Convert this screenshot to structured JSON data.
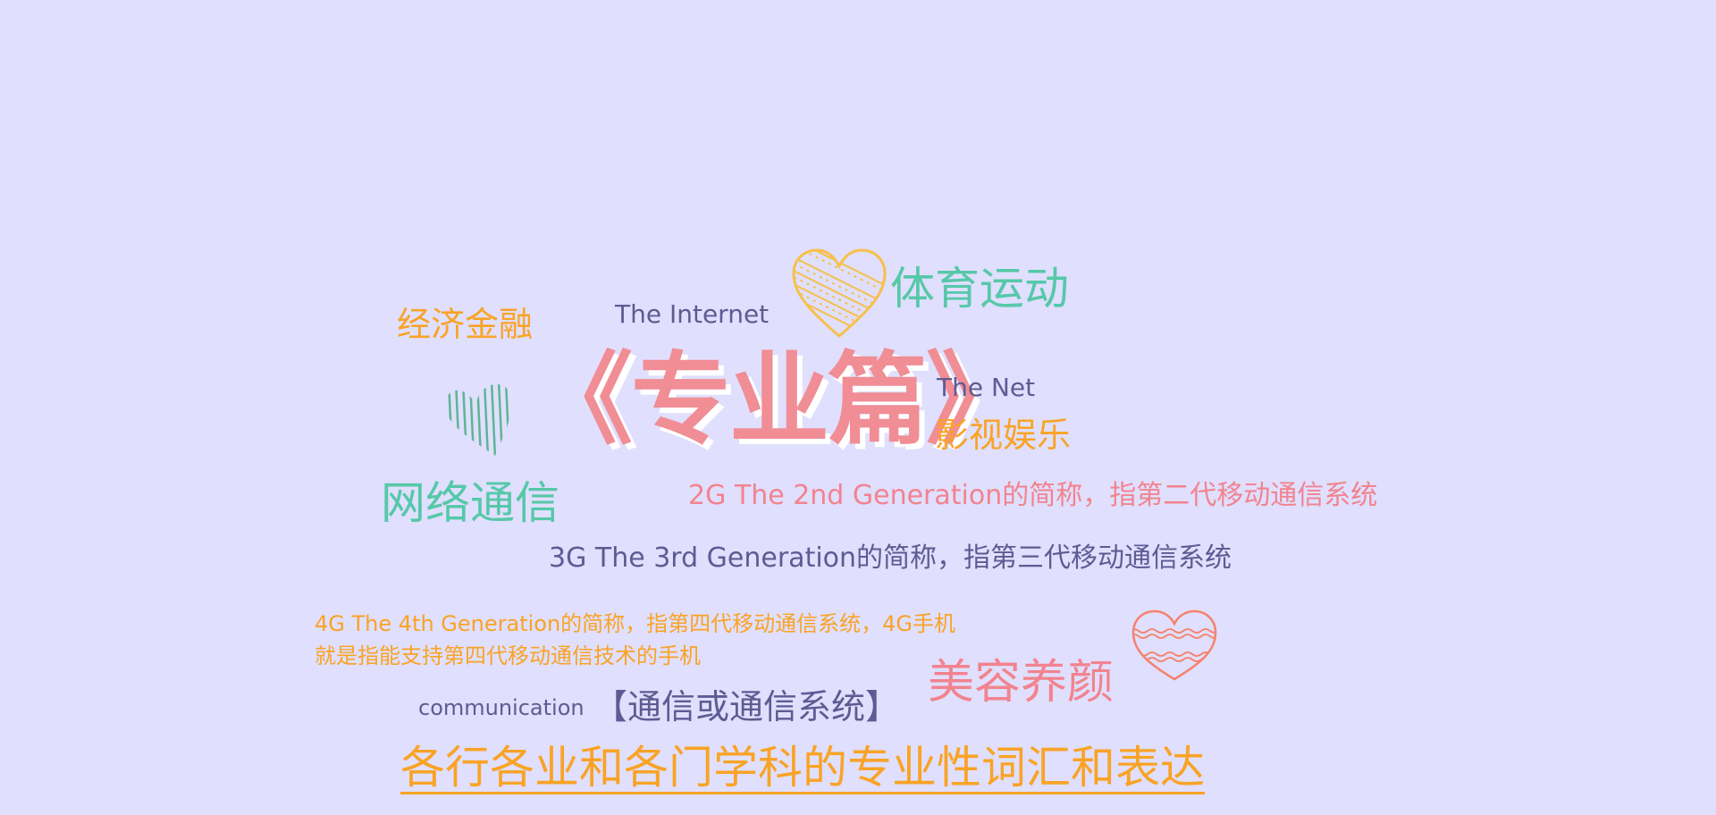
{
  "title": "《专业篇》",
  "words": {
    "finance": "经济金融",
    "internet": "The Internet",
    "sports": "体育运动",
    "net": "The Net",
    "film": "影视娱乐",
    "network": "网络通信",
    "two_g": "2G  The 2nd Generation的简称，指第二代移动通信系统",
    "three_g": "3G  The 3rd Generation的简称，指第三代移动通信系统",
    "four_g_line1": "4G  The 4th Generation的简称，指第四代移动通信系统，4G手机",
    "four_g_line2": "就是指能支持第四代移动通信技术的手机",
    "communication_en": "communication",
    "communication_cn": "【通信或通信系统】",
    "beauty": "美容养颜",
    "footer": "各行各业和各门学科的专业性词汇和表达"
  },
  "colors": {
    "background": "#e0dffd",
    "orange": "#f9a326",
    "teal": "#56c8a8",
    "navy": "#5e5b93",
    "pink": "#f2838f",
    "title_pink": "#f08d95",
    "heart_yellow": "#f7c04a",
    "heart_green": "#5db594",
    "heart_coral": "#f5826c"
  },
  "icons": [
    "heart-yellow-icon",
    "heart-green-icon",
    "heart-coral-icon"
  ]
}
